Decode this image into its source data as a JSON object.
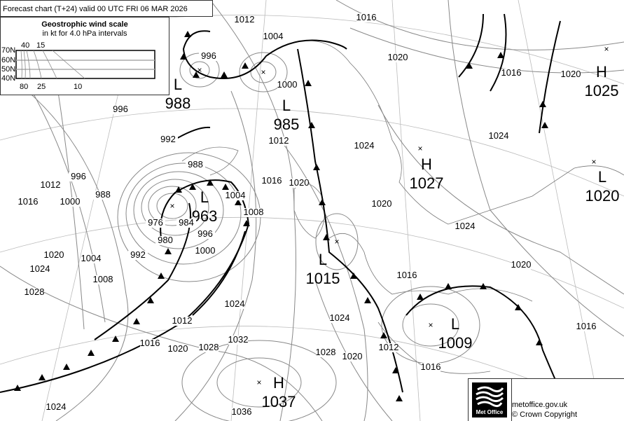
{
  "header": {
    "title": "Forecast chart (T+24) valid 00 UTC FRI 06  MAR 2026"
  },
  "wind_scale": {
    "title": "Geostrophic wind scale",
    "subtitle": "in kt for 4.0 hPa intervals",
    "lat_labels": [
      "70N",
      "60N",
      "50N",
      "40N"
    ],
    "top_speeds": [
      "40",
      "15"
    ],
    "bottom_speeds": [
      "80",
      "25",
      "10"
    ]
  },
  "pressure_centres": [
    {
      "type": "L",
      "value": "988"
    },
    {
      "type": "L",
      "value": "985"
    },
    {
      "type": "L",
      "value": "963"
    },
    {
      "type": "L",
      "value": "1015"
    },
    {
      "type": "H",
      "value": "1027"
    },
    {
      "type": "H",
      "value": "1025"
    },
    {
      "type": "L",
      "value": "1020"
    },
    {
      "type": "L",
      "value": "1009"
    },
    {
      "type": "H",
      "value": "1037"
    }
  ],
  "isobar_labels": [
    "1012",
    "1004",
    "996",
    "1016",
    "1020",
    "1016",
    "1020",
    "1000",
    "996",
    "992",
    "1012",
    "1024",
    "1024",
    "988",
    "1016",
    "1020",
    "1012",
    "1016",
    "1000",
    "996",
    "988",
    "1020",
    "1024",
    "1004",
    "1008",
    "976",
    "980",
    "984",
    "996",
    "1000",
    "992",
    "1020",
    "1004",
    "1008",
    "1024",
    "1028",
    "1020",
    "1016",
    "1024",
    "1024",
    "1012",
    "1016",
    "1020",
    "1028",
    "1032",
    "1028",
    "1020",
    "1012",
    "1016",
    "1016",
    "1024",
    "1036"
  ],
  "footer": {
    "brand": "Met Office",
    "site": "metoffice.gov.uk",
    "copyright": "© Crown Copyright"
  },
  "colors": {
    "isobar": "#888888",
    "front": "#000000",
    "coast": "#777777"
  }
}
